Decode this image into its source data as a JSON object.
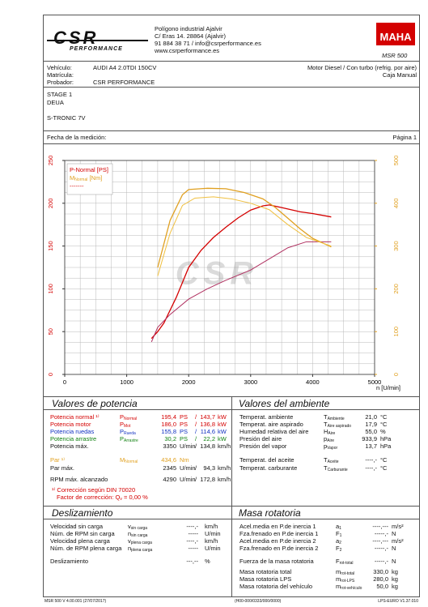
{
  "header": {
    "logo_main": "CSR",
    "logo_sub": "PERFORMANCE",
    "address": [
      "Polígono industrial Ajalvir",
      "C/ Eras 14. 28864 (Ajalvir)",
      "91 884 38 71 / info@csrperformance.es",
      "www.csrperformance.es"
    ],
    "brand": "MAHA",
    "model": "MSR 500"
  },
  "vehicle": {
    "vehicle_label": "Vehículo:",
    "vehicle": "AUDI A4 2.0TDI 150CV",
    "plate_label": "Matrícula:",
    "tester_label": "Probador:",
    "tester": "CSR PERFORMANCE",
    "engine": "Motor Diesel / Con turbo (refrig. por aire)",
    "gearbox": "Caja Manual"
  },
  "notes": [
    "STAGE 1",
    "DEUA",
    "S-TRONIC 7V"
  ],
  "date_label": "Fecha de la medición:",
  "page": "Página 1",
  "chart_data": {
    "type": "line",
    "xlim": [
      0,
      5000
    ],
    "xticks": [
      0,
      1000,
      2000,
      3000,
      4000,
      5000
    ],
    "xlabel": "n [U/min]",
    "ylim": [
      0,
      250
    ],
    "yticks": [
      0,
      50,
      100,
      150,
      200,
      250
    ],
    "y2lim": [
      0,
      500
    ],
    "y2ticks": [
      0,
      100,
      200,
      300,
      400,
      500
    ],
    "y2color": "#e0a020",
    "xgrid": [
      0,
      250,
      500,
      750,
      1000,
      1250,
      1500,
      1750,
      2000,
      2250,
      2500,
      2750,
      3000,
      3250,
      3500,
      3750,
      4000,
      4250,
      4500,
      4750,
      5000
    ],
    "ygrid": [
      0,
      12.5,
      25,
      37.5,
      50,
      62.5,
      75,
      87.5,
      100,
      112.5,
      125,
      137.5,
      150,
      162.5,
      175,
      187.5,
      200,
      212.5,
      225,
      237.5,
      250
    ],
    "legend_items": [
      {
        "text": "P-Normal [PS]",
        "color": "#d40000"
      },
      {
        "text": "M",
        "sub": "Normal",
        "after": " [Nm]",
        "color": "#e0a020"
      },
      {
        "text": "-------",
        "color": "#d40000"
      }
    ],
    "series": [
      {
        "color": "#d40000",
        "width": 1.3,
        "x": [
          1400,
          1500,
          1600,
          1800,
          2000,
          2200,
          2400,
          2600,
          2800,
          3000,
          3200,
          3300,
          3500,
          3800,
          4000,
          4300
        ],
        "values": [
          42,
          50,
          60,
          90,
          125,
          145,
          160,
          172,
          183,
          192,
          197,
          198,
          195,
          190,
          188,
          184
        ]
      },
      {
        "color": "#b03060",
        "width": 1,
        "x": [
          1400,
          1500,
          1700,
          2000,
          2300,
          2600,
          3000,
          3300,
          3600,
          3900,
          4300
        ],
        "values": [
          38,
          55,
          70,
          88,
          100,
          110,
          122,
          135,
          148,
          155,
          155
        ]
      },
      {
        "color": "#e0a020",
        "width": 1.3,
        "axis": "y2",
        "x": [
          1500,
          1700,
          1900,
          2000,
          2300,
          2600,
          2900,
          3200,
          3400,
          3600,
          3800,
          4000,
          4300
        ],
        "values": [
          250,
          360,
          420,
          432,
          435,
          434,
          425,
          410,
          390,
          365,
          340,
          318,
          298
        ]
      },
      {
        "color": "#f0c040",
        "width": 1,
        "axis": "y2",
        "x": [
          1500,
          1700,
          1900,
          2100,
          2400,
          2700,
          3000,
          3300,
          3600,
          3900,
          4300
        ],
        "values": [
          230,
          330,
          395,
          412,
          415,
          410,
          400,
          385,
          350,
          320,
          300
        ]
      }
    ]
  },
  "power": {
    "title": "Valores de potencia",
    "rows": [
      {
        "label": "Potencia normal ¹⁾",
        "symbol": {
          "main": "P",
          "sub": "Normal"
        },
        "value": "195,4",
        "unit": "PS",
        "sep": "/",
        "value2": "143,7",
        "unit2": "kW",
        "color": "#d40000"
      },
      {
        "label": "Potencia motor",
        "symbol": {
          "main": "P",
          "sub": "Mot"
        },
        "value": "186,0",
        "unit": "PS",
        "sep": "/",
        "value2": "136,8",
        "unit2": "kW",
        "color": "#d40000"
      },
      {
        "label": "Potencia ruedas",
        "symbol": {
          "main": "P",
          "sub": "Rueda"
        },
        "value": "155,8",
        "unit": "PS",
        "sep": "/",
        "value2": "114,6",
        "unit2": "kW",
        "color": "#1030c0"
      },
      {
        "label": "Potencia arrastre",
        "symbol": {
          "main": "P",
          "sub": "Arrastre"
        },
        "value": "30,2",
        "unit": "PS",
        "sep": "/",
        "value2": "22,2",
        "unit2": "kW",
        "color": "#108010"
      },
      {
        "label": "Potencia máx.",
        "value": "3350",
        "unit": "U/min",
        "sep": "/",
        "value2": "134,8",
        "unit2": "km/h",
        "color": "#111111"
      },
      {
        "label": "Par ¹⁾",
        "symbol": {
          "main": "M",
          "sub": "Normal"
        },
        "value": "434,6",
        "unit": "Nm",
        "color": "#e0a020"
      },
      {
        "label": "Par máx.",
        "value": "2345",
        "unit": "U/min",
        "sep": "/",
        "value2": "94,3",
        "unit2": "km/h",
        "color": "#111111"
      },
      {
        "label": "RPM máx. alcanzado",
        "value": "4290",
        "unit": "U/min",
        "sep": "/",
        "value2": "172,8",
        "unit2": "km/h",
        "color": "#111111"
      }
    ],
    "footnote": "¹⁾ Corrección según DIN 70020",
    "factor": {
      "label": "Factor de corrección:",
      "symbol": {
        "main": "Q",
        "sub": "v"
      },
      "value": "=  0,00 %"
    }
  },
  "ambient": {
    "title": "Valores del ambiente",
    "rows": [
      {
        "label": "Temperat. ambiente",
        "symbol": {
          "main": "T",
          "sub": "Ambiente"
        },
        "value": "21,0",
        "unit": "°C"
      },
      {
        "label": "Temperat. aire aspirado",
        "symbol": {
          "main": "T",
          "sub": "Aire aspirado"
        },
        "value": "17,9",
        "unit": "°C"
      },
      {
        "label": "Humedad relativa del aire",
        "symbol": {
          "main": "H",
          "sub": "Aire"
        },
        "value": "55,0",
        "unit": "%"
      },
      {
        "label": "Presión del aire",
        "symbol": {
          "main": "p",
          "sub": "Aire"
        },
        "value": "933,9",
        "unit": "hPa"
      },
      {
        "label": "Presión del vapor",
        "symbol": {
          "main": "p",
          "sub": "Vapor"
        },
        "value": "13,7",
        "unit": "hPa"
      },
      {
        "label": "Temperat. del aceite",
        "symbol": {
          "main": "T",
          "sub": "Aceite"
        },
        "value": "----,-",
        "unit": "°C"
      },
      {
        "label": "Temperat. carburante",
        "symbol": {
          "main": "T",
          "sub": "Carburante"
        },
        "value": "----,-",
        "unit": "°C"
      }
    ]
  },
  "slip": {
    "title": "Deslizamiento",
    "rows": [
      {
        "label": "Velocidad sin carga",
        "symbol": {
          "main": "v",
          "sub": "sin carga"
        },
        "value": "----,-",
        "unit": "km/h"
      },
      {
        "label": "Núm. de RPM sin carga",
        "symbol": {
          "main": "n",
          "sub": "sin carga"
        },
        "value": "-----",
        "unit": "U/min"
      },
      {
        "label": "Velocidad plena carga",
        "symbol": {
          "main": "v",
          "sub": "plena carga"
        },
        "value": "----,-",
        "unit": "km/h"
      },
      {
        "label": "Núm. de RPM plena carga",
        "symbol": {
          "main": "n",
          "sub": "plena carga"
        },
        "value": "-----",
        "unit": "U/min"
      },
      {
        "label": "Deslizamiento",
        "value": "---,--",
        "unit": "%"
      }
    ]
  },
  "inertia": {
    "title": "Masa rotatoria",
    "rows": [
      {
        "label": "Acel.media en P.de inercia 1",
        "symbol": {
          "main": "a",
          "sub": "1"
        },
        "value": "----,---",
        "unit": "m/s²"
      },
      {
        "label": "Fza.frenado en P.de inercia 1",
        "symbol": {
          "main": "F",
          "sub": "1"
        },
        "value": "-----,-",
        "unit": "N"
      },
      {
        "label": "Acel.media en P.de inercia 2",
        "symbol": {
          "main": "a",
          "sub": "2"
        },
        "value": "----,---",
        "unit": "m/s²"
      },
      {
        "label": "Fza.frenado en P.de inercia 2",
        "symbol": {
          "main": "F",
          "sub": "2"
        },
        "value": "-----,-",
        "unit": "N"
      },
      {
        "label": "Fuerza de la masa rotatoria",
        "symbol": {
          "main": "F",
          "sub": "rot-total"
        },
        "value": "-----,-",
        "unit": "N"
      },
      {
        "label": "Masa rotatoria total",
        "symbol": {
          "main": "m",
          "sub": "rot-total"
        },
        "value": "330,0",
        "unit": "kg"
      },
      {
        "label": "Masa rotatoria LPS",
        "symbol": {
          "main": "m",
          "sub": "rot-LPS"
        },
        "value": "280,0",
        "unit": "kg"
      },
      {
        "label": "Masa rotatoria del vehículo",
        "symbol": {
          "main": "m",
          "sub": "rot-vehículo"
        },
        "value": "50,0",
        "unit": "kg"
      }
    ]
  },
  "footer": {
    "left": "MSR 500 V 4.00.001 (27/07/2017)",
    "center": "(H00-000/0333/000/0000)",
    "right": "LPS-EURO V1.37.010"
  }
}
